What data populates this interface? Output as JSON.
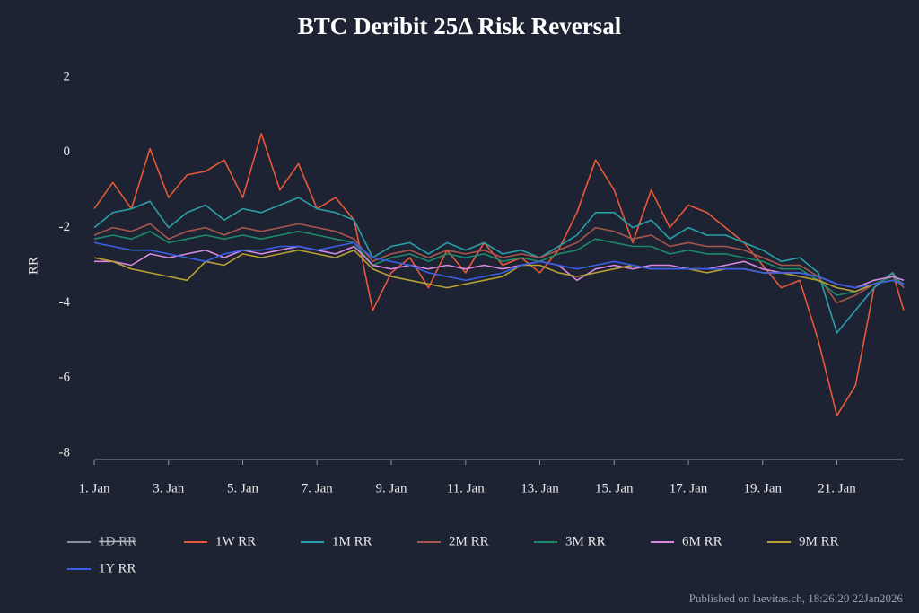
{
  "chart_data": {
    "type": "line",
    "title": "BTC Deribit 25Δ Risk Reversal",
    "y_label": "RR",
    "source": "Published on laevitas.ch, 18:26:20 22Jan2026",
    "xlim": [
      1,
      22.8
    ],
    "ylim": [
      -8,
      2
    ],
    "yticks": [
      2,
      0,
      -2,
      -4,
      -6,
      -8
    ],
    "xticks": [
      {
        "value": 1,
        "label": "1. Jan"
      },
      {
        "value": 3,
        "label": "3. Jan"
      },
      {
        "value": 5,
        "label": "5. Jan"
      },
      {
        "value": 7,
        "label": "7. Jan"
      },
      {
        "value": 9,
        "label": "9. Jan"
      },
      {
        "value": 11,
        "label": "11. Jan"
      },
      {
        "value": 13,
        "label": "13. Jan"
      },
      {
        "value": 15,
        "label": "15. Jan"
      },
      {
        "value": 17,
        "label": "17. Jan"
      },
      {
        "value": 19,
        "label": "19. Jan"
      },
      {
        "value": 21,
        "label": "21. Jan"
      }
    ],
    "x": [
      1,
      1.5,
      2,
      2.5,
      3,
      3.5,
      4,
      4.5,
      5,
      5.5,
      6,
      6.5,
      7,
      7.5,
      8,
      8.5,
      9,
      9.5,
      10,
      10.5,
      11,
      11.5,
      12,
      12.5,
      13,
      13.5,
      14,
      14.5,
      15,
      15.5,
      16,
      16.5,
      17,
      17.5,
      18,
      18.5,
      19,
      19.5,
      20,
      20.5,
      21,
      21.5,
      22,
      22.5,
      22.8
    ],
    "series": [
      {
        "name": "1D RR",
        "color": "#8a8f99",
        "visible": false,
        "values": [
          null,
          null,
          null,
          null,
          null,
          null,
          null,
          null,
          null,
          null,
          null,
          null,
          null,
          null,
          null,
          null,
          null,
          null,
          null,
          null,
          null,
          null,
          null,
          null,
          null,
          null,
          null,
          null,
          null,
          null,
          null,
          null,
          null,
          null,
          null,
          null,
          null,
          null,
          null,
          null,
          null,
          null,
          null,
          null,
          null
        ]
      },
      {
        "name": "1W RR",
        "color": "#e8583a",
        "visible": true,
        "values": [
          -1.5,
          -0.8,
          -1.5,
          0.1,
          -1.2,
          -0.6,
          -0.5,
          -0.2,
          -1.2,
          0.5,
          -1.0,
          -0.3,
          -1.5,
          -1.2,
          -1.8,
          -4.2,
          -3.2,
          -2.8,
          -3.6,
          -2.6,
          -3.2,
          -2.4,
          -3.0,
          -2.8,
          -3.2,
          -2.6,
          -1.6,
          -0.2,
          -1.0,
          -2.4,
          -1.0,
          -2.0,
          -1.4,
          -1.6,
          -2.0,
          -2.4,
          -3.0,
          -3.6,
          -3.4,
          -5.0,
          -7.0,
          -6.2,
          -3.6,
          -3.2,
          -4.2
        ]
      },
      {
        "name": "1M RR",
        "color": "#2a9fa8",
        "visible": true,
        "values": [
          -2.0,
          -1.6,
          -1.5,
          -1.3,
          -2.0,
          -1.6,
          -1.4,
          -1.8,
          -1.5,
          -1.6,
          -1.4,
          -1.2,
          -1.5,
          -1.6,
          -1.8,
          -2.8,
          -2.5,
          -2.4,
          -2.7,
          -2.4,
          -2.6,
          -2.4,
          -2.7,
          -2.6,
          -2.8,
          -2.5,
          -2.2,
          -1.6,
          -1.6,
          -2.0,
          -1.8,
          -2.3,
          -2.0,
          -2.2,
          -2.2,
          -2.4,
          -2.6,
          -2.9,
          -2.8,
          -3.2,
          -4.8,
          -4.2,
          -3.6,
          -3.2,
          -3.6
        ]
      },
      {
        "name": "2M RR",
        "color": "#a8564c",
        "visible": true,
        "values": [
          -2.2,
          -2.0,
          -2.1,
          -1.9,
          -2.3,
          -2.1,
          -2.0,
          -2.2,
          -2.0,
          -2.1,
          -2.0,
          -1.9,
          -2.0,
          -2.1,
          -2.3,
          -2.9,
          -2.7,
          -2.6,
          -2.8,
          -2.6,
          -2.7,
          -2.6,
          -2.8,
          -2.7,
          -2.8,
          -2.6,
          -2.4,
          -2.0,
          -2.1,
          -2.3,
          -2.2,
          -2.5,
          -2.4,
          -2.5,
          -2.5,
          -2.6,
          -2.8,
          -3.0,
          -3.0,
          -3.3,
          -4.0,
          -3.8,
          -3.5,
          -3.3,
          -3.6
        ]
      },
      {
        "name": "3M RR",
        "color": "#1c8a6a",
        "visible": true,
        "values": [
          -2.3,
          -2.2,
          -2.3,
          -2.1,
          -2.4,
          -2.3,
          -2.2,
          -2.3,
          -2.2,
          -2.3,
          -2.2,
          -2.1,
          -2.2,
          -2.3,
          -2.4,
          -3.0,
          -2.8,
          -2.7,
          -2.9,
          -2.7,
          -2.8,
          -2.7,
          -2.9,
          -2.8,
          -2.9,
          -2.7,
          -2.6,
          -2.3,
          -2.4,
          -2.5,
          -2.5,
          -2.7,
          -2.6,
          -2.7,
          -2.7,
          -2.8,
          -2.9,
          -3.1,
          -3.1,
          -3.4,
          -3.8,
          -3.7,
          -3.5,
          -3.3,
          -3.5
        ]
      },
      {
        "name": "6M RR",
        "color": "#d888e0",
        "visible": true,
        "values": [
          -2.9,
          -2.9,
          -3.0,
          -2.7,
          -2.8,
          -2.7,
          -2.6,
          -2.8,
          -2.6,
          -2.7,
          -2.6,
          -2.5,
          -2.6,
          -2.7,
          -2.5,
          -3.0,
          -3.1,
          -3.0,
          -3.1,
          -3.0,
          -3.1,
          -3.0,
          -3.1,
          -3.0,
          -2.9,
          -3.0,
          -3.4,
          -3.1,
          -3.0,
          -3.1,
          -3.0,
          -3.0,
          -3.1,
          -3.1,
          -3.0,
          -2.9,
          -3.1,
          -3.2,
          -3.2,
          -3.3,
          -3.5,
          -3.6,
          -3.4,
          -3.3,
          -3.4
        ]
      },
      {
        "name": "9M RR",
        "color": "#b8a032",
        "visible": true,
        "values": [
          -2.8,
          -2.9,
          -3.1,
          -3.2,
          -3.3,
          -3.4,
          -2.9,
          -3.0,
          -2.7,
          -2.8,
          -2.7,
          -2.6,
          -2.7,
          -2.8,
          -2.6,
          -3.1,
          -3.3,
          -3.4,
          -3.5,
          -3.6,
          -3.5,
          -3.4,
          -3.3,
          -3.0,
          -3.0,
          -3.2,
          -3.3,
          -3.2,
          -3.1,
          -3.0,
          -3.1,
          -3.1,
          -3.1,
          -3.2,
          -3.1,
          -3.1,
          -3.2,
          -3.2,
          -3.3,
          -3.4,
          -3.6,
          -3.7,
          -3.5,
          -3.4,
          -3.5
        ]
      },
      {
        "name": "1Y RR",
        "color": "#3a5ee8",
        "visible": true,
        "values": [
          -2.4,
          -2.5,
          -2.6,
          -2.6,
          -2.7,
          -2.8,
          -2.9,
          -2.7,
          -2.6,
          -2.6,
          -2.5,
          -2.5,
          -2.6,
          -2.5,
          -2.4,
          -2.8,
          -2.9,
          -3.0,
          -3.2,
          -3.3,
          -3.4,
          -3.3,
          -3.2,
          -3.0,
          -2.9,
          -3.0,
          -3.1,
          -3.0,
          -2.9,
          -3.0,
          -3.1,
          -3.1,
          -3.1,
          -3.1,
          -3.1,
          -3.1,
          -3.2,
          -3.2,
          -3.2,
          -3.3,
          -3.5,
          -3.6,
          -3.5,
          -3.4,
          -3.5
        ]
      }
    ]
  }
}
